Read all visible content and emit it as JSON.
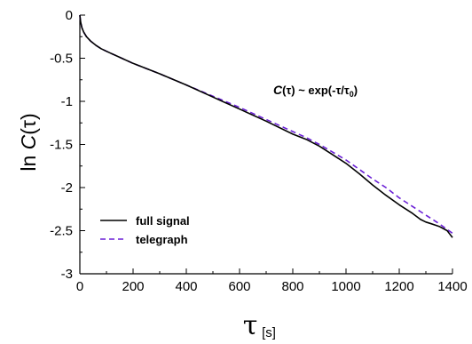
{
  "chart_data": {
    "type": "line",
    "xlabel_symbol": "τ",
    "xlabel_unit": "[s]",
    "ylabel_prefix": "ln ",
    "ylabel_func": "C",
    "ylabel_arg": "(τ)",
    "annotation": {
      "c": "C",
      "arg": "(τ) ~ exp(-τ/τ",
      "sub": "0",
      "close": ")"
    },
    "xlim": [
      0,
      1400
    ],
    "ylim": [
      -3,
      0
    ],
    "x_ticks": [
      "0",
      "200",
      "400",
      "600",
      "800",
      "1000",
      "1200",
      "1400"
    ],
    "y_ticks": [
      "0",
      "-0.5",
      "-1",
      "-1.5",
      "-2",
      "-2.5",
      "-3"
    ],
    "grid": false,
    "legend_position": "lower-left",
    "series": [
      {
        "name": "full signal",
        "color": "#000000",
        "style": "solid",
        "x": [
          0,
          3,
          8,
          15,
          25,
          40,
          60,
          80,
          100,
          150,
          200,
          300,
          400,
          500,
          600,
          700,
          800,
          850,
          900,
          950,
          1000,
          1050,
          1100,
          1150,
          1200,
          1250,
          1280,
          1300,
          1320,
          1350,
          1380,
          1400
        ],
        "y": [
          0,
          -0.08,
          -0.15,
          -0.2,
          -0.25,
          -0.3,
          -0.35,
          -0.39,
          -0.42,
          -0.49,
          -0.56,
          -0.68,
          -0.81,
          -0.95,
          -1.09,
          -1.23,
          -1.38,
          -1.44,
          -1.52,
          -1.62,
          -1.72,
          -1.84,
          -1.97,
          -2.09,
          -2.2,
          -2.3,
          -2.37,
          -2.4,
          -2.42,
          -2.45,
          -2.5,
          -2.58
        ]
      },
      {
        "name": "telegraph",
        "color": "#6a1fd6",
        "style": "dashed",
        "x": [
          0,
          3,
          8,
          15,
          25,
          40,
          60,
          80,
          100,
          150,
          200,
          300,
          400,
          500,
          600,
          700,
          800,
          850,
          900,
          950,
          1000,
          1050,
          1100,
          1150,
          1200,
          1250,
          1300,
          1350,
          1400
        ],
        "y": [
          0,
          -0.08,
          -0.15,
          -0.2,
          -0.25,
          -0.3,
          -0.35,
          -0.39,
          -0.42,
          -0.49,
          -0.56,
          -0.68,
          -0.81,
          -0.94,
          -1.07,
          -1.21,
          -1.35,
          -1.42,
          -1.5,
          -1.59,
          -1.68,
          -1.79,
          -1.9,
          -2.0,
          -2.12,
          -2.22,
          -2.32,
          -2.42,
          -2.53
        ]
      }
    ]
  }
}
